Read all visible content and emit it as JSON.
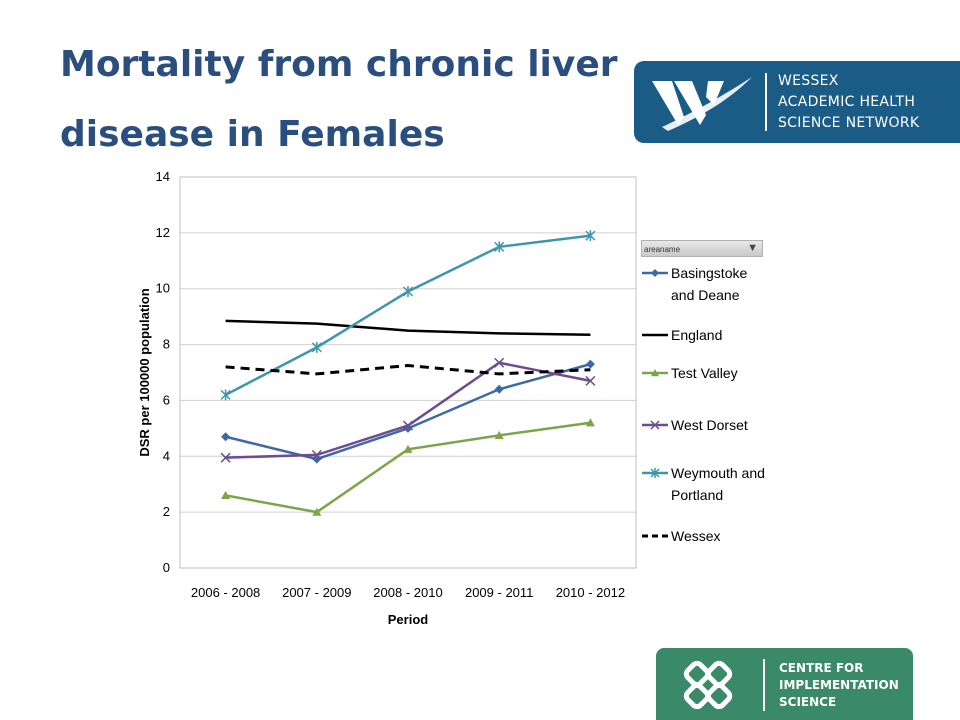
{
  "header": {
    "title": "Mortality from chronic liver disease in Females"
  },
  "logos": {
    "wessex": {
      "lines": [
        "WESSEX",
        "ACADEMIC HEALTH",
        "SCIENCE NETWORK"
      ],
      "color": "#1b5c86"
    },
    "cis": {
      "lines": [
        "CENTRE FOR",
        "IMPLEMENTATION",
        "SCIENCE"
      ],
      "color": "#3a8a6a"
    }
  },
  "legend": {
    "filter_label": "areaname",
    "filter_icon": "filter-icon"
  },
  "chart_data": {
    "type": "line",
    "title": "",
    "xlabel": "Period",
    "ylabel": "DSR per 100000 population",
    "categories": [
      "2006 - 2008",
      "2007 - 2009",
      "2008 - 2010",
      "2009 - 2011",
      "2010 - 2012"
    ],
    "ylim": [
      0,
      14
    ],
    "yticks": [
      0,
      2,
      4,
      6,
      8,
      10,
      12,
      14
    ],
    "grid": "horizontal",
    "legend_position": "right",
    "series": [
      {
        "name": "Basingstoke and Deane",
        "values": [
          4.7,
          3.9,
          5.0,
          6.4,
          7.3
        ],
        "color": "#3d6aa3",
        "marker": "diamond",
        "dash": "solid"
      },
      {
        "name": "England",
        "values": [
          8.85,
          8.75,
          8.5,
          8.4,
          8.35
        ],
        "color": "#000000",
        "marker": "none",
        "dash": "solid"
      },
      {
        "name": "Test Valley",
        "values": [
          2.6,
          2.0,
          4.25,
          4.75,
          5.2
        ],
        "color": "#7ea44a",
        "marker": "triangle",
        "dash": "solid"
      },
      {
        "name": "West Dorset",
        "values": [
          3.95,
          4.05,
          5.1,
          7.35,
          6.7
        ],
        "color": "#6f4b8f",
        "marker": "x",
        "dash": "solid"
      },
      {
        "name": "Weymouth and Portland",
        "values": [
          6.2,
          7.9,
          9.9,
          11.5,
          11.9
        ],
        "color": "#3d97aa",
        "marker": "star",
        "dash": "solid"
      },
      {
        "name": "Wessex",
        "values": [
          7.2,
          6.95,
          7.25,
          6.95,
          7.1
        ],
        "color": "#000000",
        "marker": "none",
        "dash": "dashed"
      }
    ]
  }
}
